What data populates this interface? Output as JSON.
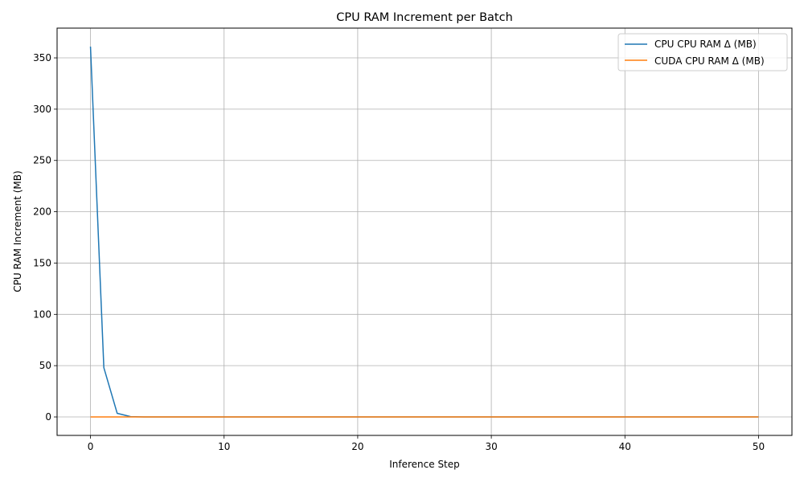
{
  "chart_data": {
    "type": "line",
    "title": "CPU RAM Increment per Batch",
    "xlabel": "Inference Step",
    "ylabel": "CPU RAM Increment (MB)",
    "xlim": [
      -2.5,
      52.5
    ],
    "ylim": [
      -18,
      379
    ],
    "xticks": [
      0,
      10,
      20,
      30,
      40,
      50
    ],
    "yticks": [
      0,
      50,
      100,
      150,
      200,
      250,
      300,
      350
    ],
    "grid": true,
    "legend_position": "top-right",
    "series": [
      {
        "name": "CPU CPU RAM Δ (MB)",
        "color": "#1f77b4",
        "x": [
          0,
          1,
          2,
          3,
          4,
          5,
          6,
          7,
          8,
          9,
          10,
          11,
          12,
          13,
          14,
          15,
          16,
          17,
          18,
          19,
          20,
          21,
          22,
          23,
          24,
          25,
          26,
          27,
          28,
          29,
          30,
          31,
          32,
          33,
          34,
          35,
          36,
          37,
          38,
          39,
          40,
          41,
          42,
          43,
          44,
          45,
          46,
          47,
          48,
          49,
          50
        ],
        "y": [
          361,
          48,
          3.5,
          0.3,
          0,
          0,
          0,
          0,
          0,
          0,
          0,
          0,
          0,
          0,
          0,
          0,
          0,
          0,
          0,
          0,
          0,
          0,
          0,
          0,
          0,
          0,
          0,
          0,
          0,
          0,
          0,
          0,
          0,
          0,
          0,
          0,
          0,
          0,
          0,
          0,
          0,
          0,
          0,
          0,
          0,
          0,
          0,
          0,
          0,
          0,
          0
        ]
      },
      {
        "name": "CUDA CPU RAM Δ (MB)",
        "color": "#ff7f0e",
        "x": [
          0,
          1,
          2,
          3,
          4,
          5,
          6,
          7,
          8,
          9,
          10,
          11,
          12,
          13,
          14,
          15,
          16,
          17,
          18,
          19,
          20,
          21,
          22,
          23,
          24,
          25,
          26,
          27,
          28,
          29,
          30,
          31,
          32,
          33,
          34,
          35,
          36,
          37,
          38,
          39,
          40,
          41,
          42,
          43,
          44,
          45,
          46,
          47,
          48,
          49,
          50
        ],
        "y": [
          0,
          0,
          0,
          0,
          0,
          0,
          0,
          0,
          0,
          0,
          0,
          0,
          0,
          0,
          0,
          0,
          0,
          0,
          0,
          0,
          0,
          0,
          0,
          0,
          0,
          0,
          0,
          0,
          0,
          0,
          0,
          0,
          0,
          0,
          0,
          0,
          0,
          0,
          0,
          0,
          0,
          0,
          0,
          0,
          0,
          0,
          0,
          0,
          0,
          0,
          0
        ]
      }
    ]
  }
}
